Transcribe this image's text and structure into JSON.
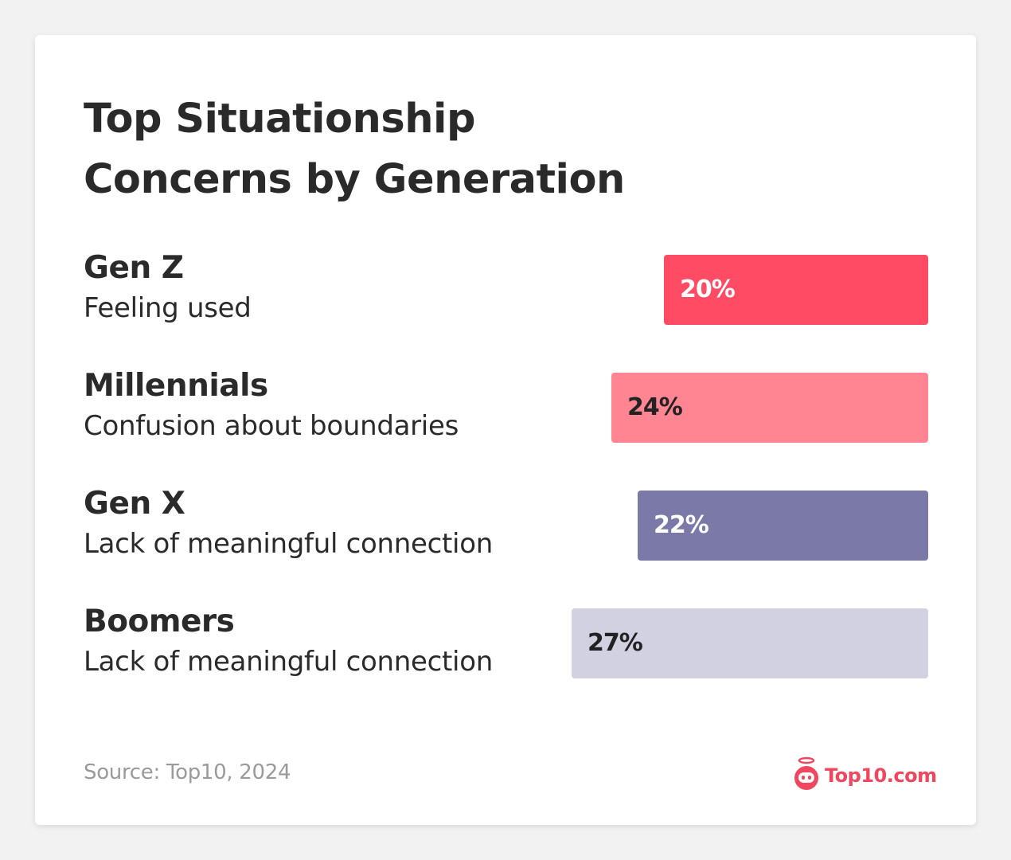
{
  "title": "Top Situationship Concerns by Generation",
  "rows": [
    {
      "generation": "Gen Z",
      "concern": "Feeling used",
      "value": 20,
      "label": "20%",
      "color": "#ff4b63",
      "text_color": "#ffffff"
    },
    {
      "generation": "Millennials",
      "concern": "Confusion about boundaries",
      "value": 24,
      "label": "24%",
      "color": "#ff8593",
      "text_color": "#222222"
    },
    {
      "generation": "Gen X",
      "concern": "Lack of meaningful connection",
      "value": 22,
      "label": "22%",
      "color": "#7b79a8",
      "text_color": "#ffffff"
    },
    {
      "generation": "Boomers",
      "concern": "Lack of meaningful connection",
      "value": 27,
      "label": "27%",
      "color": "#d2d1e2",
      "text_color": "#222222"
    }
  ],
  "footer": {
    "source": "Source: Top10, 2024",
    "logo_text": "Top10.com",
    "logo_icon": "robot-halo-icon",
    "brand_color": "#f0475e"
  },
  "chart_data": {
    "type": "bar",
    "orientation": "horizontal",
    "title": "Top Situationship Concerns by Generation",
    "categories": [
      "Gen Z",
      "Millennials",
      "Gen X",
      "Boomers"
    ],
    "subcategories": [
      "Feeling used",
      "Confusion about boundaries",
      "Lack of meaningful connection",
      "Lack of meaningful connection"
    ],
    "values": [
      20,
      24,
      22,
      27
    ],
    "unit": "%",
    "xlabel": "",
    "ylabel": "",
    "grid": false,
    "legend": null,
    "source": "Source: Top10, 2024"
  }
}
